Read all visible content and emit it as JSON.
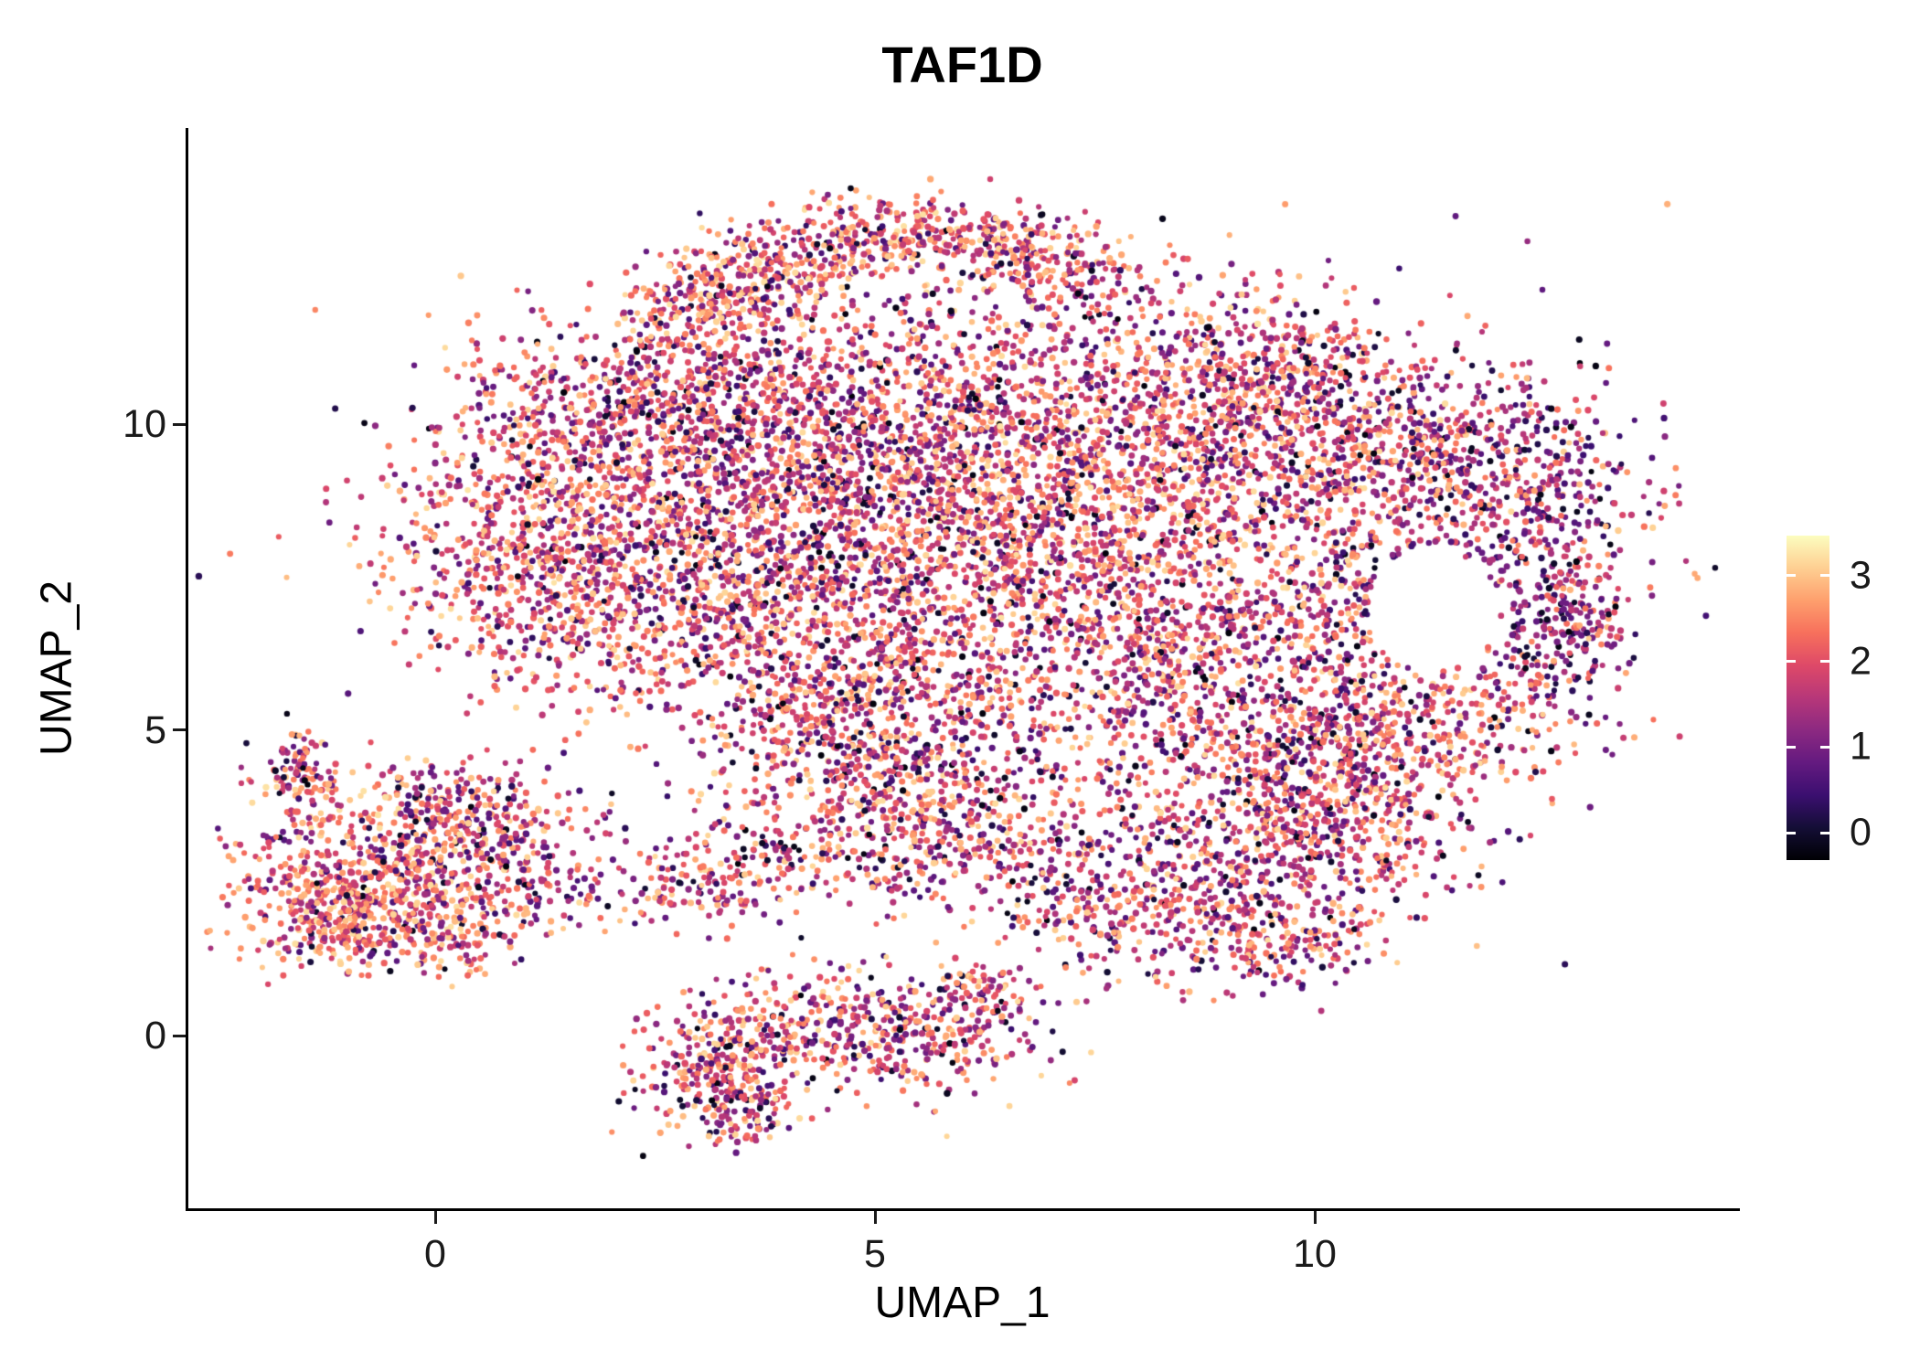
{
  "title": "TAF1D",
  "chart_data": {
    "type": "scatter",
    "title": "TAF1D",
    "xlabel": "UMAP_1",
    "ylabel": "UMAP_2",
    "xlim": [
      -2.8,
      14.8
    ],
    "ylim": [
      -2.8,
      14.8
    ],
    "x_ticks": [
      0,
      5,
      10
    ],
    "y_ticks": [
      0,
      5,
      10
    ],
    "grid": false,
    "legend_position": "right",
    "colorscale": {
      "name": "magma",
      "min": 0,
      "max": 3.5,
      "ticks": [
        0,
        1,
        2,
        3
      ],
      "stops": [
        [
          0.0,
          "#000004"
        ],
        [
          0.1,
          "#140e36"
        ],
        [
          0.2,
          "#3b0f70"
        ],
        [
          0.3,
          "#641a80"
        ],
        [
          0.4,
          "#8c2981"
        ],
        [
          0.5,
          "#b73779"
        ],
        [
          0.6,
          "#de4968"
        ],
        [
          0.7,
          "#f7705c"
        ],
        [
          0.8,
          "#fe9f6d"
        ],
        [
          0.9,
          "#fecf92"
        ],
        [
          1.0,
          "#fcfdbf"
        ]
      ]
    },
    "n_points_approx": 14800,
    "seed": 42,
    "tones": {
      "bright": [
        [
          0.07,
          0.05,
          0.85
        ],
        [
          0.2,
          0.85,
          1.8
        ],
        [
          0.73,
          1.75,
          3.3
        ]
      ],
      "mix": [
        [
          0.13,
          0.05,
          0.9
        ],
        [
          0.3,
          0.9,
          1.85
        ],
        [
          0.57,
          1.7,
          3.25
        ]
      ],
      "dark": [
        [
          0.24,
          0.05,
          0.95
        ],
        [
          0.42,
          0.9,
          1.9
        ],
        [
          0.34,
          1.6,
          3.0
        ]
      ]
    },
    "holes": [
      {
        "cx": 11.35,
        "cy": 6.95,
        "rx": 0.75,
        "ry": 1.0
      }
    ],
    "clusters": [
      {
        "name": "top-band-left",
        "cx": 3.9,
        "cy": 12.6,
        "sx": 0.9,
        "sy": 0.38,
        "rot": 25,
        "n": 330,
        "tone": "bright"
      },
      {
        "name": "top-band-right",
        "cx": 5.8,
        "cy": 13.0,
        "sx": 0.9,
        "sy": 0.3,
        "rot": -4,
        "n": 300,
        "tone": "bright"
      },
      {
        "name": "top-band-root",
        "cx": 3.1,
        "cy": 11.8,
        "sx": 0.45,
        "sy": 0.45,
        "rot": 0,
        "n": 140,
        "tone": "mix"
      },
      {
        "name": "top-band-under",
        "cx": 5.3,
        "cy": 11.7,
        "sx": 1.5,
        "sy": 0.55,
        "rot": 0,
        "n": 180,
        "tone": "mix"
      },
      {
        "name": "top-band-tail",
        "cx": 7.1,
        "cy": 12.5,
        "sx": 0.6,
        "sy": 0.35,
        "rot": -20,
        "n": 120,
        "tone": "mix"
      },
      {
        "name": "top-far-sparse",
        "cx": 8.6,
        "cy": 12.0,
        "sx": 0.8,
        "sy": 0.4,
        "rot": 0,
        "n": 60,
        "tone": "mix"
      },
      {
        "name": "main-upper-left",
        "cx": 2.2,
        "cy": 9.4,
        "sx": 1.25,
        "sy": 1.05,
        "rot": 0,
        "n": 850,
        "tone": "mix"
      },
      {
        "name": "main-left-edge",
        "cx": 1.2,
        "cy": 7.6,
        "sx": 0.95,
        "sy": 1.0,
        "rot": 0,
        "n": 600,
        "tone": "bright"
      },
      {
        "name": "main-lower-left",
        "cx": 3.2,
        "cy": 7.0,
        "sx": 1.05,
        "sy": 1.05,
        "rot": 0,
        "n": 650,
        "tone": "mix"
      },
      {
        "name": "main-center-left",
        "cx": 4.5,
        "cy": 8.9,
        "sx": 1.0,
        "sy": 1.15,
        "rot": 0,
        "n": 550,
        "tone": "mix"
      },
      {
        "name": "main-top-edge",
        "cx": 2.9,
        "cy": 10.5,
        "sx": 1.3,
        "sy": 0.55,
        "rot": 5,
        "n": 400,
        "tone": "mix"
      },
      {
        "name": "main-center-top",
        "cx": 6.0,
        "cy": 9.7,
        "sx": 1.15,
        "sy": 0.85,
        "rot": 0,
        "n": 600,
        "tone": "mix"
      },
      {
        "name": "main-center",
        "cx": 6.3,
        "cy": 7.6,
        "sx": 1.15,
        "sy": 1.05,
        "rot": 0,
        "n": 650,
        "tone": "mix"
      },
      {
        "name": "main-center-bottom",
        "cx": 5.2,
        "cy": 5.9,
        "sx": 0.95,
        "sy": 0.75,
        "rot": 0,
        "n": 430,
        "tone": "mix"
      },
      {
        "name": "main-bottom-spur",
        "cx": 4.4,
        "cy": 4.9,
        "sx": 0.6,
        "sy": 0.55,
        "rot": 0,
        "n": 230,
        "tone": "mix"
      },
      {
        "name": "right-center-dense",
        "cx": 8.3,
        "cy": 8.7,
        "sx": 1.15,
        "sy": 1.15,
        "rot": 0,
        "n": 780,
        "tone": "bright"
      },
      {
        "name": "right-center-low",
        "cx": 8.6,
        "cy": 6.3,
        "sx": 1.05,
        "sy": 0.85,
        "rot": 0,
        "n": 560,
        "tone": "mix"
      },
      {
        "name": "right-center-top",
        "cx": 8.0,
        "cy": 10.6,
        "sx": 1.25,
        "sy": 0.65,
        "rot": 0,
        "n": 430,
        "tone": "mix"
      },
      {
        "name": "lobe-top-connector",
        "cx": 9.8,
        "cy": 10.9,
        "sx": 0.65,
        "sy": 0.5,
        "rot": 0,
        "n": 200,
        "tone": "mix"
      },
      {
        "name": "gap-filler-low",
        "cx": 7.1,
        "cy": 4.7,
        "sx": 1.4,
        "sy": 0.5,
        "rot": 0,
        "n": 190,
        "tone": "mix"
      },
      {
        "name": "lobe-top",
        "cx": 10.6,
        "cy": 9.8,
        "sx": 1.1,
        "sy": 0.75,
        "rot": 0,
        "n": 430,
        "tone": "mix"
      },
      {
        "name": "lobe-top-right",
        "cx": 11.8,
        "cy": 9.3,
        "sx": 0.85,
        "sy": 0.7,
        "rot": 0,
        "n": 330,
        "tone": "dark"
      },
      {
        "name": "lobe-right-arc",
        "cx": 12.65,
        "cy": 7.6,
        "sx": 0.5,
        "sy": 1.05,
        "rot": 0,
        "n": 300,
        "tone": "dark"
      },
      {
        "name": "lobe-hole-left",
        "cx": 10.3,
        "cy": 7.1,
        "sx": 0.45,
        "sy": 1.0,
        "rot": 0,
        "n": 210,
        "tone": "mix"
      },
      {
        "name": "lobe-below-hole",
        "cx": 11.3,
        "cy": 5.3,
        "sx": 0.95,
        "sy": 0.55,
        "rot": 0,
        "n": 290,
        "tone": "mix"
      },
      {
        "name": "lobe-bottom-left",
        "cx": 10.2,
        "cy": 4.5,
        "sx": 0.8,
        "sy": 0.55,
        "rot": 0,
        "n": 260,
        "tone": "mix"
      },
      {
        "name": "lobe-sparse-fill",
        "cx": 11.5,
        "cy": 7.9,
        "sx": 1.2,
        "sy": 1.3,
        "rot": 0,
        "n": 170,
        "tone": "dark"
      },
      {
        "name": "lobe-right-tail",
        "cx": 12.9,
        "cy": 6.5,
        "sx": 0.3,
        "sy": 0.5,
        "rot": 0,
        "n": 90,
        "tone": "dark"
      },
      {
        "name": "arm-left",
        "cx": 4.6,
        "cy": 3.4,
        "sx": 1.15,
        "sy": 0.55,
        "rot": 8,
        "n": 270,
        "tone": "mix"
      },
      {
        "name": "arm-mid",
        "cx": 6.3,
        "cy": 3.0,
        "sx": 0.9,
        "sy": 0.55,
        "rot": 0,
        "n": 240,
        "tone": "mix"
      },
      {
        "name": "arm-tip-left",
        "cx": 3.0,
        "cy": 2.5,
        "sx": 0.65,
        "sy": 0.4,
        "rot": 15,
        "n": 150,
        "tone": "mix"
      },
      {
        "name": "arm-upper-knot",
        "cx": 5.5,
        "cy": 4.0,
        "sx": 0.5,
        "sy": 0.4,
        "rot": 0,
        "n": 120,
        "tone": "mix"
      },
      {
        "name": "bottomright-dense",
        "cx": 9.0,
        "cy": 2.9,
        "sx": 1.05,
        "sy": 0.85,
        "rot": 0,
        "n": 480,
        "tone": "mix"
      },
      {
        "name": "bottomright-upper",
        "cx": 10.3,
        "cy": 3.7,
        "sx": 0.8,
        "sy": 0.95,
        "rot": 0,
        "n": 380,
        "tone": "mix"
      },
      {
        "name": "bottomright-low",
        "cx": 7.9,
        "cy": 1.9,
        "sx": 0.8,
        "sy": 0.5,
        "rot": -10,
        "n": 200,
        "tone": "mix"
      },
      {
        "name": "bottomright-tip",
        "cx": 9.7,
        "cy": 1.6,
        "sx": 0.6,
        "sy": 0.4,
        "rot": 0,
        "n": 130,
        "tone": "mix"
      },
      {
        "name": "left-cluster-core",
        "cx": -0.6,
        "cy": 2.9,
        "sx": 0.8,
        "sy": 0.7,
        "rot": -10,
        "n": 520,
        "tone": "bright"
      },
      {
        "name": "left-cluster-low",
        "cx": -1.1,
        "cy": 1.9,
        "sx": 0.5,
        "sy": 0.42,
        "rot": 0,
        "n": 260,
        "tone": "bright"
      },
      {
        "name": "left-cluster-upper",
        "cx": 0.4,
        "cy": 3.6,
        "sx": 0.55,
        "sy": 0.5,
        "rot": 0,
        "n": 200,
        "tone": "mix"
      },
      {
        "name": "left-cluster-tail",
        "cx": -1.5,
        "cy": 4.35,
        "sx": 0.22,
        "sy": 0.33,
        "rot": 0,
        "n": 90,
        "tone": "mix"
      },
      {
        "name": "left-cluster-right",
        "cx": 1.1,
        "cy": 2.6,
        "sx": 0.5,
        "sy": 0.38,
        "rot": 0,
        "n": 130,
        "tone": "mix"
      },
      {
        "name": "left-cluster-bottom",
        "cx": 0.1,
        "cy": 1.7,
        "sx": 0.5,
        "sy": 0.35,
        "rot": 0,
        "n": 140,
        "tone": "bright"
      },
      {
        "name": "bottom-dense",
        "cx": 3.2,
        "cy": -0.55,
        "sx": 0.42,
        "sy": 0.55,
        "rot": 0,
        "n": 270,
        "tone": "mix"
      },
      {
        "name": "bottom-mid",
        "cx": 4.3,
        "cy": 0.2,
        "sx": 0.6,
        "sy": 0.5,
        "rot": 0,
        "n": 210,
        "tone": "mix"
      },
      {
        "name": "bottom-right",
        "cx": 5.6,
        "cy": 0.0,
        "sx": 0.65,
        "sy": 0.5,
        "rot": 0,
        "n": 250,
        "tone": "mix"
      },
      {
        "name": "bottom-spur",
        "cx": 6.2,
        "cy": 0.7,
        "sx": 0.35,
        "sy": 0.3,
        "rot": 0,
        "n": 80,
        "tone": "mix"
      },
      {
        "name": "bottom-tip",
        "cx": 3.6,
        "cy": -1.2,
        "sx": 0.3,
        "sy": 0.3,
        "rot": 0,
        "n": 70,
        "tone": "mix"
      },
      {
        "name": "wide-sparse",
        "cx": 6.3,
        "cy": 8.2,
        "sx": 3.3,
        "sy": 2.4,
        "rot": 0,
        "n": 320,
        "tone": "mix"
      }
    ]
  }
}
